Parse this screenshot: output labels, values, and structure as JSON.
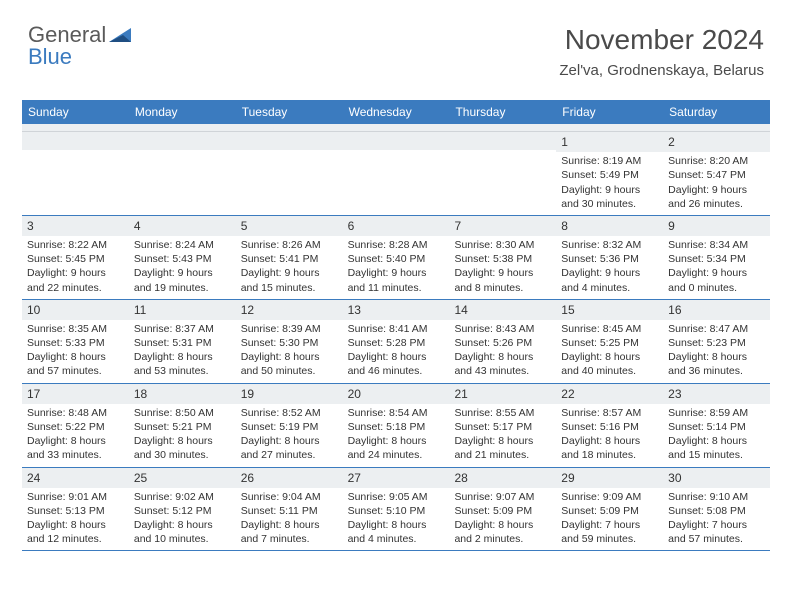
{
  "logo": {
    "text1": "General",
    "text2": "Blue"
  },
  "title": "November 2024",
  "location": "Zel'va, Grodnenskaya, Belarus",
  "colors": {
    "header_bg": "#3b7bbf",
    "header_text": "#ffffff",
    "daynum_bg": "#eceff1",
    "row_border": "#3b7bbf",
    "text": "#333333",
    "logo_gray": "#5a5a5a",
    "logo_blue": "#3b7bbf",
    "background": "#ffffff"
  },
  "typography": {
    "title_fontsize": 28,
    "location_fontsize": 15,
    "header_fontsize": 12,
    "daynum_fontsize": 12,
    "body_fontsize": 10.5
  },
  "day_headers": [
    "Sunday",
    "Monday",
    "Tuesday",
    "Wednesday",
    "Thursday",
    "Friday",
    "Saturday"
  ],
  "weeks": [
    [
      {
        "num": "",
        "lines": [
          "",
          "",
          "",
          ""
        ]
      },
      {
        "num": "",
        "lines": [
          "",
          "",
          "",
          ""
        ]
      },
      {
        "num": "",
        "lines": [
          "",
          "",
          "",
          ""
        ]
      },
      {
        "num": "",
        "lines": [
          "",
          "",
          "",
          ""
        ]
      },
      {
        "num": "",
        "lines": [
          "",
          "",
          "",
          ""
        ]
      },
      {
        "num": "1",
        "lines": [
          "Sunrise: 8:19 AM",
          "Sunset: 5:49 PM",
          "Daylight: 9 hours",
          "and 30 minutes."
        ]
      },
      {
        "num": "2",
        "lines": [
          "Sunrise: 8:20 AM",
          "Sunset: 5:47 PM",
          "Daylight: 9 hours",
          "and 26 minutes."
        ]
      }
    ],
    [
      {
        "num": "3",
        "lines": [
          "Sunrise: 8:22 AM",
          "Sunset: 5:45 PM",
          "Daylight: 9 hours",
          "and 22 minutes."
        ]
      },
      {
        "num": "4",
        "lines": [
          "Sunrise: 8:24 AM",
          "Sunset: 5:43 PM",
          "Daylight: 9 hours",
          "and 19 minutes."
        ]
      },
      {
        "num": "5",
        "lines": [
          "Sunrise: 8:26 AM",
          "Sunset: 5:41 PM",
          "Daylight: 9 hours",
          "and 15 minutes."
        ]
      },
      {
        "num": "6",
        "lines": [
          "Sunrise: 8:28 AM",
          "Sunset: 5:40 PM",
          "Daylight: 9 hours",
          "and 11 minutes."
        ]
      },
      {
        "num": "7",
        "lines": [
          "Sunrise: 8:30 AM",
          "Sunset: 5:38 PM",
          "Daylight: 9 hours",
          "and 8 minutes."
        ]
      },
      {
        "num": "8",
        "lines": [
          "Sunrise: 8:32 AM",
          "Sunset: 5:36 PM",
          "Daylight: 9 hours",
          "and 4 minutes."
        ]
      },
      {
        "num": "9",
        "lines": [
          "Sunrise: 8:34 AM",
          "Sunset: 5:34 PM",
          "Daylight: 9 hours",
          "and 0 minutes."
        ]
      }
    ],
    [
      {
        "num": "10",
        "lines": [
          "Sunrise: 8:35 AM",
          "Sunset: 5:33 PM",
          "Daylight: 8 hours",
          "and 57 minutes."
        ]
      },
      {
        "num": "11",
        "lines": [
          "Sunrise: 8:37 AM",
          "Sunset: 5:31 PM",
          "Daylight: 8 hours",
          "and 53 minutes."
        ]
      },
      {
        "num": "12",
        "lines": [
          "Sunrise: 8:39 AM",
          "Sunset: 5:30 PM",
          "Daylight: 8 hours",
          "and 50 minutes."
        ]
      },
      {
        "num": "13",
        "lines": [
          "Sunrise: 8:41 AM",
          "Sunset: 5:28 PM",
          "Daylight: 8 hours",
          "and 46 minutes."
        ]
      },
      {
        "num": "14",
        "lines": [
          "Sunrise: 8:43 AM",
          "Sunset: 5:26 PM",
          "Daylight: 8 hours",
          "and 43 minutes."
        ]
      },
      {
        "num": "15",
        "lines": [
          "Sunrise: 8:45 AM",
          "Sunset: 5:25 PM",
          "Daylight: 8 hours",
          "and 40 minutes."
        ]
      },
      {
        "num": "16",
        "lines": [
          "Sunrise: 8:47 AM",
          "Sunset: 5:23 PM",
          "Daylight: 8 hours",
          "and 36 minutes."
        ]
      }
    ],
    [
      {
        "num": "17",
        "lines": [
          "Sunrise: 8:48 AM",
          "Sunset: 5:22 PM",
          "Daylight: 8 hours",
          "and 33 minutes."
        ]
      },
      {
        "num": "18",
        "lines": [
          "Sunrise: 8:50 AM",
          "Sunset: 5:21 PM",
          "Daylight: 8 hours",
          "and 30 minutes."
        ]
      },
      {
        "num": "19",
        "lines": [
          "Sunrise: 8:52 AM",
          "Sunset: 5:19 PM",
          "Daylight: 8 hours",
          "and 27 minutes."
        ]
      },
      {
        "num": "20",
        "lines": [
          "Sunrise: 8:54 AM",
          "Sunset: 5:18 PM",
          "Daylight: 8 hours",
          "and 24 minutes."
        ]
      },
      {
        "num": "21",
        "lines": [
          "Sunrise: 8:55 AM",
          "Sunset: 5:17 PM",
          "Daylight: 8 hours",
          "and 21 minutes."
        ]
      },
      {
        "num": "22",
        "lines": [
          "Sunrise: 8:57 AM",
          "Sunset: 5:16 PM",
          "Daylight: 8 hours",
          "and 18 minutes."
        ]
      },
      {
        "num": "23",
        "lines": [
          "Sunrise: 8:59 AM",
          "Sunset: 5:14 PM",
          "Daylight: 8 hours",
          "and 15 minutes."
        ]
      }
    ],
    [
      {
        "num": "24",
        "lines": [
          "Sunrise: 9:01 AM",
          "Sunset: 5:13 PM",
          "Daylight: 8 hours",
          "and 12 minutes."
        ]
      },
      {
        "num": "25",
        "lines": [
          "Sunrise: 9:02 AM",
          "Sunset: 5:12 PM",
          "Daylight: 8 hours",
          "and 10 minutes."
        ]
      },
      {
        "num": "26",
        "lines": [
          "Sunrise: 9:04 AM",
          "Sunset: 5:11 PM",
          "Daylight: 8 hours",
          "and 7 minutes."
        ]
      },
      {
        "num": "27",
        "lines": [
          "Sunrise: 9:05 AM",
          "Sunset: 5:10 PM",
          "Daylight: 8 hours",
          "and 4 minutes."
        ]
      },
      {
        "num": "28",
        "lines": [
          "Sunrise: 9:07 AM",
          "Sunset: 5:09 PM",
          "Daylight: 8 hours",
          "and 2 minutes."
        ]
      },
      {
        "num": "29",
        "lines": [
          "Sunrise: 9:09 AM",
          "Sunset: 5:09 PM",
          "Daylight: 7 hours",
          "and 59 minutes."
        ]
      },
      {
        "num": "30",
        "lines": [
          "Sunrise: 9:10 AM",
          "Sunset: 5:08 PM",
          "Daylight: 7 hours",
          "and 57 minutes."
        ]
      }
    ]
  ]
}
